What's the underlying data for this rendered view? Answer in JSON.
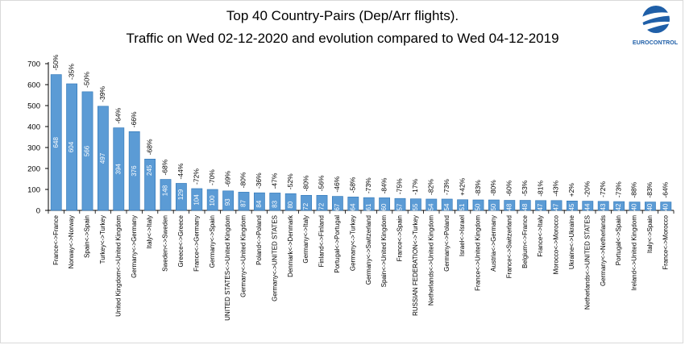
{
  "header": {
    "title_line1": "Top 40 Country-Pairs (Dep/Arr flights).",
    "title_line2": "Traffic on Wed 02-12-2020 and evolution compared to Wed 04-12-2019",
    "logo_text": "EUROCONTROL"
  },
  "colors": {
    "bar_fill": "#5b9bd5",
    "bar_edge": "#2e75b6",
    "label_text": "#ffffff",
    "axis": "#000000",
    "logo_blue": "#1f5fa8"
  },
  "chart_data": {
    "type": "bar",
    "title": "",
    "xlabel": "",
    "ylabel": "",
    "ylim": [
      0,
      700
    ],
    "yticks": [
      0,
      100,
      200,
      300,
      400,
      500,
      600,
      700
    ],
    "grid": false,
    "legend": "none",
    "categories": [
      "France<->France",
      "Norway<->Norway",
      "Spain<->Spain",
      "Turkey<->Turkey",
      "United Kingdom<->United Kingdom",
      "Germany<->Germany",
      "Italy<->Italy",
      "Sweden<->Sweden",
      "Greece<->Greece",
      "France<->Germany",
      "Germany<->Spain",
      "UNITED STATES<->United Kingdom",
      "Germany<->United Kingdom",
      "Poland<->Poland",
      "Germany<->UNITED STATES",
      "Denmark<->Denmark",
      "Germany<->Italy",
      "Finland<->Finland",
      "Portugal<->Portugal",
      "Germany<->Turkey",
      "Germany<->Switzerland",
      "Spain<->United Kingdom",
      "France<->Spain",
      "RUSSIAN FEDERATION<->Turkey",
      "Netherlands<->United Kingdom",
      "Germany<->Poland",
      "Israel<->Israel",
      "France<->United Kingdom",
      "Austria<->Germany",
      "France<->Switzerland",
      "Belgium<->France",
      "France<->Italy",
      "Morocco<->Morocco",
      "Ukraine<->Ukraine",
      "Netherlands<->UNITED STATES",
      "Germany<->Netherlands",
      "Portugal<->Spain",
      "Ireland<->United Kingdom",
      "Italy<->Spain",
      "France<->Morocco"
    ],
    "values": [
      648,
      604,
      566,
      497,
      394,
      376,
      245,
      148,
      129,
      104,
      100,
      93,
      87,
      84,
      83,
      80,
      72,
      72,
      67,
      64,
      61,
      60,
      57,
      55,
      54,
      54,
      51,
      50,
      50,
      48,
      48,
      47,
      47,
      45,
      44,
      43,
      42,
      40,
      40,
      40
    ],
    "evolution": [
      "-50%",
      "-35%",
      "-50%",
      "-39%",
      "-64%",
      "-66%",
      "-68%",
      "-68%",
      "-44%",
      "-72%",
      "-70%",
      "-69%",
      "-80%",
      "-36%",
      "-47%",
      "-52%",
      "-80%",
      "-56%",
      "-46%",
      "-58%",
      "-73%",
      "-84%",
      "-75%",
      "-17%",
      "-82%",
      "-73%",
      "+42%",
      "-83%",
      "-80%",
      "-60%",
      "-53%",
      "-81%",
      "-43%",
      "+2%",
      "-20%",
      "-72%",
      "-73%",
      "-88%",
      "-83%",
      "-64%"
    ]
  }
}
